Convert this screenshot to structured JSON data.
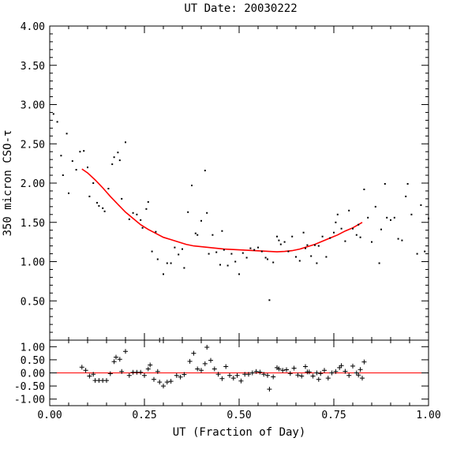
{
  "chart_data": [
    {
      "type": "scatter",
      "title": "UT Date: 20030222",
      "ylabel": "350 micron CSO-τ",
      "xlim": [
        0.0,
        1.0
      ],
      "ylim": [
        0.0,
        4.0
      ],
      "xticks": [
        0.0,
        0.25,
        0.5,
        0.75,
        1.0
      ],
      "yticks": [
        0.5,
        1.0,
        1.5,
        2.0,
        2.5,
        3.0,
        3.5,
        4.0
      ],
      "ytick_labels": [
        "0.50",
        "1.00",
        "1.50",
        "2.00",
        "2.50",
        "3.00",
        "3.50",
        "4.00"
      ],
      "points": [
        [
          0.01,
          2.88
        ],
        [
          0.02,
          2.78
        ],
        [
          0.03,
          2.35
        ],
        [
          0.035,
          2.1
        ],
        [
          0.045,
          2.63
        ],
        [
          0.05,
          1.87
        ],
        [
          0.06,
          2.28
        ],
        [
          0.07,
          2.17
        ],
        [
          0.08,
          2.4
        ],
        [
          0.09,
          2.41
        ],
        [
          0.1,
          2.2
        ],
        [
          0.105,
          1.83
        ],
        [
          0.115,
          2.0
        ],
        [
          0.125,
          1.75
        ],
        [
          0.13,
          1.71
        ],
        [
          0.14,
          1.68
        ],
        [
          0.145,
          1.64
        ],
        [
          0.155,
          1.93
        ],
        [
          0.165,
          2.24
        ],
        [
          0.17,
          2.33
        ],
        [
          0.18,
          2.39
        ],
        [
          0.185,
          2.29
        ],
        [
          0.19,
          1.8
        ],
        [
          0.2,
          2.52
        ],
        [
          0.21,
          1.54
        ],
        [
          0.22,
          1.62
        ],
        [
          0.23,
          1.6
        ],
        [
          0.24,
          1.53
        ],
        [
          0.245,
          1.43
        ],
        [
          0.255,
          1.67
        ],
        [
          0.26,
          1.76
        ],
        [
          0.27,
          1.13
        ],
        [
          0.28,
          1.38
        ],
        [
          0.285,
          1.03
        ],
        [
          0.3,
          0.84
        ],
        [
          0.31,
          0.98
        ],
        [
          0.32,
          0.98
        ],
        [
          0.33,
          1.18
        ],
        [
          0.34,
          1.09
        ],
        [
          0.35,
          1.16
        ],
        [
          0.355,
          0.92
        ],
        [
          0.365,
          1.63
        ],
        [
          0.375,
          1.97
        ],
        [
          0.385,
          1.36
        ],
        [
          0.39,
          1.34
        ],
        [
          0.4,
          1.52
        ],
        [
          0.41,
          2.16
        ],
        [
          0.415,
          1.62
        ],
        [
          0.42,
          1.1
        ],
        [
          0.43,
          1.34
        ],
        [
          0.44,
          1.12
        ],
        [
          0.45,
          0.96
        ],
        [
          0.455,
          1.39
        ],
        [
          0.46,
          1.15
        ],
        [
          0.47,
          0.95
        ],
        [
          0.48,
          1.1
        ],
        [
          0.49,
          1.0
        ],
        [
          0.5,
          0.84
        ],
        [
          0.51,
          1.11
        ],
        [
          0.52,
          1.05
        ],
        [
          0.53,
          1.17
        ],
        [
          0.54,
          1.15
        ],
        [
          0.55,
          1.18
        ],
        [
          0.56,
          1.13
        ],
        [
          0.57,
          1.05
        ],
        [
          0.575,
          1.03
        ],
        [
          0.58,
          0.51
        ],
        [
          0.59,
          0.99
        ],
        [
          0.6,
          1.32
        ],
        [
          0.605,
          1.27
        ],
        [
          0.61,
          1.22
        ],
        [
          0.62,
          1.25
        ],
        [
          0.63,
          1.13
        ],
        [
          0.64,
          1.32
        ],
        [
          0.65,
          1.06
        ],
        [
          0.66,
          1.01
        ],
        [
          0.67,
          1.37
        ],
        [
          0.675,
          1.17
        ],
        [
          0.68,
          1.21
        ],
        [
          0.69,
          1.07
        ],
        [
          0.7,
          1.21
        ],
        [
          0.705,
          0.98
        ],
        [
          0.71,
          1.2
        ],
        [
          0.72,
          1.32
        ],
        [
          0.73,
          1.06
        ],
        [
          0.74,
          1.3
        ],
        [
          0.75,
          1.37
        ],
        [
          0.755,
          1.5
        ],
        [
          0.76,
          1.6
        ],
        [
          0.77,
          1.42
        ],
        [
          0.78,
          1.26
        ],
        [
          0.79,
          1.65
        ],
        [
          0.8,
          1.42
        ],
        [
          0.81,
          1.34
        ],
        [
          0.815,
          1.47
        ],
        [
          0.82,
          1.31
        ],
        [
          0.83,
          1.92
        ],
        [
          0.84,
          1.56
        ],
        [
          0.85,
          1.25
        ],
        [
          0.86,
          1.7
        ],
        [
          0.87,
          0.98
        ],
        [
          0.875,
          1.41
        ],
        [
          0.885,
          1.99
        ],
        [
          0.89,
          1.56
        ],
        [
          0.9,
          1.53
        ],
        [
          0.91,
          1.56
        ],
        [
          0.92,
          1.29
        ],
        [
          0.93,
          1.27
        ],
        [
          0.94,
          1.83
        ],
        [
          0.945,
          1.99
        ],
        [
          0.955,
          1.6
        ],
        [
          0.97,
          1.1
        ],
        [
          0.98,
          1.72
        ],
        [
          0.99,
          1.13
        ],
        [
          1.0,
          1.55
        ]
      ],
      "fit_curve": [
        [
          0.085,
          2.18
        ],
        [
          0.1,
          2.13
        ],
        [
          0.12,
          2.04
        ],
        [
          0.14,
          1.94
        ],
        [
          0.16,
          1.83
        ],
        [
          0.18,
          1.73
        ],
        [
          0.2,
          1.63
        ],
        [
          0.22,
          1.55
        ],
        [
          0.24,
          1.47
        ],
        [
          0.26,
          1.41
        ],
        [
          0.28,
          1.36
        ],
        [
          0.3,
          1.31
        ],
        [
          0.32,
          1.28
        ],
        [
          0.34,
          1.25
        ],
        [
          0.36,
          1.22
        ],
        [
          0.38,
          1.2
        ],
        [
          0.4,
          1.19
        ],
        [
          0.42,
          1.18
        ],
        [
          0.44,
          1.17
        ],
        [
          0.46,
          1.16
        ],
        [
          0.48,
          1.155
        ],
        [
          0.5,
          1.15
        ],
        [
          0.52,
          1.145
        ],
        [
          0.54,
          1.14
        ],
        [
          0.56,
          1.135
        ],
        [
          0.58,
          1.13
        ],
        [
          0.6,
          1.125
        ],
        [
          0.62,
          1.13
        ],
        [
          0.64,
          1.14
        ],
        [
          0.66,
          1.16
        ],
        [
          0.68,
          1.19
        ],
        [
          0.7,
          1.22
        ],
        [
          0.72,
          1.26
        ],
        [
          0.74,
          1.3
        ],
        [
          0.76,
          1.34
        ],
        [
          0.78,
          1.39
        ],
        [
          0.8,
          1.43
        ],
        [
          0.825,
          1.5
        ]
      ],
      "fit_color": "#ff0000",
      "point_color": "#000000",
      "grid": false
    },
    {
      "type": "scatter",
      "xlabel": "UT (Fraction of Day)",
      "xlim": [
        0.0,
        1.0
      ],
      "ylim": [
        -1.25,
        1.25
      ],
      "xticks": [
        0.0,
        0.25,
        0.5,
        0.75,
        1.0
      ],
      "xtick_labels": [
        "0.00",
        "0.25",
        "0.50",
        "0.75",
        "1.00"
      ],
      "yticks": [
        -1.0,
        -0.5,
        0.0,
        0.5,
        1.0
      ],
      "ytick_labels": [
        "-1.00",
        "-0.50",
        "0.00",
        "0.50",
        "1.00"
      ],
      "zero_line_color": "#ff0000",
      "marker": "plus",
      "points": [
        [
          0.085,
          0.22
        ],
        [
          0.095,
          0.1
        ],
        [
          0.105,
          -0.12
        ],
        [
          0.115,
          -0.05
        ],
        [
          0.12,
          -0.29
        ],
        [
          0.13,
          -0.29
        ],
        [
          0.14,
          -0.29
        ],
        [
          0.15,
          -0.29
        ],
        [
          0.16,
          -0.03
        ],
        [
          0.17,
          0.43
        ],
        [
          0.175,
          0.6
        ],
        [
          0.185,
          0.52
        ],
        [
          0.19,
          0.05
        ],
        [
          0.2,
          0.82
        ],
        [
          0.21,
          -0.1
        ],
        [
          0.22,
          0.02
        ],
        [
          0.23,
          0.02
        ],
        [
          0.24,
          0.02
        ],
        [
          0.25,
          -0.1
        ],
        [
          0.26,
          0.15
        ],
        [
          0.265,
          0.3
        ],
        [
          0.275,
          -0.25
        ],
        [
          0.285,
          0.05
        ],
        [
          0.29,
          -0.35
        ],
        [
          0.3,
          -0.5
        ],
        [
          0.31,
          -0.35
        ],
        [
          0.32,
          -0.32
        ],
        [
          0.335,
          -0.1
        ],
        [
          0.345,
          -0.16
        ],
        [
          0.355,
          -0.06
        ],
        [
          0.37,
          0.44
        ],
        [
          0.38,
          0.75
        ],
        [
          0.39,
          0.15
        ],
        [
          0.4,
          0.1
        ],
        [
          0.41,
          0.35
        ],
        [
          0.415,
          0.98
        ],
        [
          0.425,
          0.48
        ],
        [
          0.435,
          0.15
        ],
        [
          0.445,
          -0.05
        ],
        [
          0.455,
          -0.22
        ],
        [
          0.465,
          0.24
        ],
        [
          0.475,
          -0.1
        ],
        [
          0.485,
          -0.2
        ],
        [
          0.495,
          -0.1
        ],
        [
          0.505,
          -0.31
        ],
        [
          0.515,
          -0.05
        ],
        [
          0.525,
          -0.05
        ],
        [
          0.535,
          0.0
        ],
        [
          0.545,
          0.05
        ],
        [
          0.555,
          0.03
        ],
        [
          0.565,
          -0.05
        ],
        [
          0.575,
          -0.1
        ],
        [
          0.58,
          -0.62
        ],
        [
          0.59,
          -0.15
        ],
        [
          0.6,
          0.2
        ],
        [
          0.605,
          0.15
        ],
        [
          0.615,
          0.1
        ],
        [
          0.625,
          0.12
        ],
        [
          0.635,
          -0.02
        ],
        [
          0.645,
          0.18
        ],
        [
          0.655,
          -0.08
        ],
        [
          0.665,
          -0.12
        ],
        [
          0.675,
          0.24
        ],
        [
          0.68,
          0.04
        ],
        [
          0.685,
          0.04
        ],
        [
          0.695,
          -0.12
        ],
        [
          0.705,
          0.0
        ],
        [
          0.71,
          -0.25
        ],
        [
          0.715,
          -0.02
        ],
        [
          0.725,
          0.1
        ],
        [
          0.735,
          -0.2
        ],
        [
          0.745,
          0.0
        ],
        [
          0.755,
          0.05
        ],
        [
          0.765,
          0.2
        ],
        [
          0.77,
          0.28
        ],
        [
          0.78,
          0.06
        ],
        [
          0.79,
          -0.1
        ],
        [
          0.8,
          0.26
        ],
        [
          0.81,
          0.0
        ],
        [
          0.815,
          -0.08
        ],
        [
          0.82,
          0.13
        ],
        [
          0.825,
          -0.2
        ],
        [
          0.83,
          0.42
        ]
      ],
      "offscale_points": [
        [
          0.29,
          1.25
        ]
      ],
      "grid": false
    }
  ]
}
